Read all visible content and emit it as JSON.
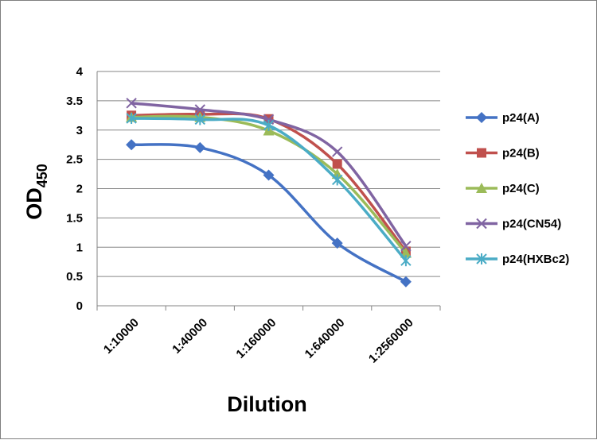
{
  "chart_data": {
    "type": "line",
    "xlabel": "Dilution",
    "ylabel": "OD",
    "ylabel_subscript": "450",
    "ylim": [
      0,
      4
    ],
    "yticks": [
      "0",
      "0.5",
      "1",
      "1.5",
      "2",
      "2.5",
      "3",
      "3.5",
      "4"
    ],
    "categories": [
      "1:10000",
      "1:40000",
      "1:160000",
      "1:640000",
      "1:2560000"
    ],
    "grid": "horizontal",
    "legend_position": "right",
    "series": [
      {
        "name": "p24(A)",
        "color": "#4472c4",
        "marker": "diamond",
        "values": [
          2.75,
          2.7,
          2.23,
          1.07,
          0.41
        ]
      },
      {
        "name": "p24(B)",
        "color": "#c0504d",
        "marker": "square",
        "values": [
          3.25,
          3.27,
          3.19,
          2.42,
          0.93
        ]
      },
      {
        "name": "p24(C)",
        "color": "#9bbb59",
        "marker": "triangle",
        "values": [
          3.22,
          3.22,
          2.99,
          2.25,
          0.9
        ]
      },
      {
        "name": "p24(CN54)",
        "color": "#8064a2",
        "marker": "x",
        "values": [
          3.46,
          3.35,
          3.18,
          2.63,
          1.02
        ]
      },
      {
        "name": "p24(HXBc2)",
        "color": "#4bacc6",
        "marker": "star",
        "values": [
          3.2,
          3.18,
          3.08,
          2.15,
          0.77
        ]
      }
    ]
  }
}
